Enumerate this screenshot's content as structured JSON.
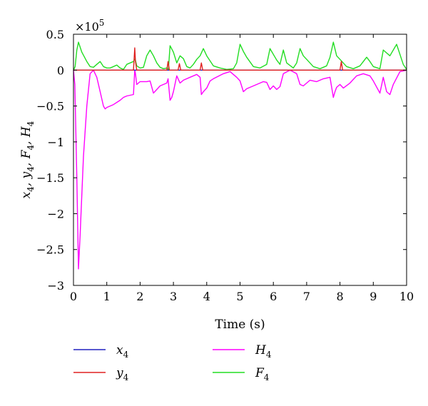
{
  "chart_data": {
    "type": "line",
    "xlabel": "Time (s)",
    "ylabel": {
      "parts": [
        "x",
        "4",
        ", y",
        "4",
        ", F",
        "4",
        ", H",
        "4"
      ]
    },
    "multiplier": {
      "base": "×10",
      "exp": "5"
    },
    "xlim": [
      0,
      10
    ],
    "ylim": [
      -3,
      0.5
    ],
    "x_ticks": [
      "0",
      "1",
      "2",
      "3",
      "4",
      "5",
      "6",
      "7",
      "8",
      "9",
      "10"
    ],
    "y_ticks": [
      "0.5",
      "0",
      "−0.5",
      "−1",
      "−1.5",
      "−2",
      "−2.5",
      "−3"
    ],
    "y_tick_values": [
      0.5,
      0,
      -0.5,
      -1,
      -1.5,
      -2,
      -2.5,
      -3
    ],
    "legend_position": "bottom",
    "series": [
      {
        "name": "x",
        "sub": "4",
        "color": "#2020c0",
        "x": [
          0,
          10
        ],
        "y": [
          0,
          0
        ]
      },
      {
        "name": "y",
        "sub": "4",
        "color": "#e02020",
        "x": [
          0,
          1.8,
          1.84,
          1.86,
          1.9,
          2.8,
          2.84,
          2.88,
          3.0,
          3.14,
          3.18,
          3.22,
          3.8,
          3.84,
          3.88,
          8.0,
          8.04,
          8.08,
          10
        ],
        "y": [
          0,
          0,
          0.31,
          0.12,
          0,
          0,
          0.12,
          0,
          0,
          0,
          0.09,
          0,
          0,
          0.1,
          0,
          0,
          0.12,
          0,
          0
        ]
      },
      {
        "name": "H",
        "sub": "4",
        "color": "#ff00ff",
        "x": [
          0,
          0.04,
          0.1,
          0.15,
          0.2,
          0.3,
          0.4,
          0.5,
          0.6,
          0.7,
          0.8,
          0.9,
          0.95,
          1.0,
          1.2,
          1.4,
          1.5,
          1.6,
          1.8,
          1.84,
          1.86,
          1.9,
          2.0,
          2.2,
          2.3,
          2.4,
          2.6,
          2.8,
          2.84,
          2.9,
          2.95,
          3.0,
          3.1,
          3.2,
          3.3,
          3.5,
          3.7,
          3.8,
          3.84,
          3.9,
          4.0,
          4.1,
          4.2,
          4.5,
          4.7,
          4.9,
          5.0,
          5.1,
          5.2,
          5.5,
          5.7,
          5.8,
          5.9,
          6.0,
          6.1,
          6.2,
          6.3,
          6.5,
          6.7,
          6.8,
          6.9,
          7.1,
          7.3,
          7.5,
          7.7,
          7.8,
          7.85,
          7.9,
          8.0,
          8.1,
          8.3,
          8.5,
          8.7,
          8.9,
          9.0,
          9.2,
          9.3,
          9.4,
          9.5,
          9.6,
          9.8,
          10.0
        ],
        "y": [
          0,
          -0.2,
          -1.5,
          -2.77,
          -2.3,
          -1.2,
          -0.5,
          -0.05,
          0,
          -0.1,
          -0.3,
          -0.5,
          -0.54,
          -0.52,
          -0.48,
          -0.42,
          -0.38,
          -0.36,
          -0.34,
          0,
          -0.05,
          -0.2,
          -0.16,
          -0.16,
          -0.15,
          -0.32,
          -0.22,
          -0.18,
          -0.12,
          -0.42,
          -0.38,
          -0.3,
          -0.08,
          -0.18,
          -0.14,
          -0.1,
          -0.06,
          -0.1,
          -0.34,
          -0.3,
          -0.25,
          -0.15,
          -0.12,
          -0.05,
          -0.02,
          -0.1,
          -0.15,
          -0.3,
          -0.26,
          -0.2,
          -0.16,
          -0.17,
          -0.27,
          -0.22,
          -0.27,
          -0.23,
          -0.05,
          0,
          -0.05,
          -0.2,
          -0.22,
          -0.14,
          -0.16,
          -0.12,
          -0.1,
          -0.38,
          -0.3,
          -0.24,
          -0.2,
          -0.25,
          -0.18,
          -0.08,
          -0.05,
          -0.08,
          -0.15,
          -0.32,
          -0.1,
          -0.3,
          -0.34,
          -0.2,
          -0.02,
          0
        ]
      },
      {
        "name": "F",
        "sub": "4",
        "color": "#22dd22",
        "x": [
          0,
          0.05,
          0.1,
          0.15,
          0.25,
          0.4,
          0.5,
          0.6,
          0.7,
          0.8,
          0.9,
          1.0,
          1.1,
          1.2,
          1.3,
          1.4,
          1.5,
          1.6,
          1.7,
          1.8,
          1.85,
          1.9,
          2.0,
          2.1,
          2.2,
          2.3,
          2.4,
          2.5,
          2.6,
          2.7,
          2.8,
          2.85,
          2.9,
          3.0,
          3.1,
          3.2,
          3.3,
          3.4,
          3.5,
          3.6,
          3.7,
          3.8,
          3.9,
          4.0,
          4.2,
          4.4,
          4.6,
          4.8,
          4.9,
          5.0,
          5.1,
          5.2,
          5.4,
          5.6,
          5.8,
          5.9,
          6.0,
          6.1,
          6.2,
          6.3,
          6.4,
          6.6,
          6.7,
          6.8,
          6.9,
          7.0,
          7.2,
          7.4,
          7.6,
          7.7,
          7.8,
          7.9,
          8.0,
          8.2,
          8.4,
          8.6,
          8.8,
          8.9,
          9.0,
          9.2,
          9.3,
          9.5,
          9.7,
          9.9,
          10.0
        ],
        "y": [
          0,
          0.05,
          0.28,
          0.39,
          0.25,
          0.12,
          0.05,
          0.04,
          0.08,
          0.12,
          0.05,
          0.03,
          0.03,
          0.05,
          0.07,
          0.03,
          0.01,
          0.08,
          0.1,
          0.12,
          0.16,
          0.06,
          0.03,
          0.04,
          0.2,
          0.28,
          0.2,
          0.1,
          0.04,
          0.02,
          0.03,
          0.01,
          0.34,
          0.25,
          0.1,
          0.2,
          0.16,
          0.05,
          0.03,
          0.08,
          0.15,
          0.2,
          0.3,
          0.2,
          0.06,
          0.03,
          0.01,
          0.02,
          0.1,
          0.36,
          0.26,
          0.18,
          0.05,
          0.03,
          0.08,
          0.3,
          0.22,
          0.14,
          0.08,
          0.28,
          0.1,
          0.03,
          0.1,
          0.3,
          0.2,
          0.15,
          0.05,
          0.02,
          0.06,
          0.18,
          0.39,
          0.2,
          0.15,
          0.05,
          0.02,
          0.06,
          0.18,
          0.12,
          0.05,
          0.02,
          0.28,
          0.2,
          0.36,
          0.08,
          0.01
        ]
      }
    ]
  }
}
